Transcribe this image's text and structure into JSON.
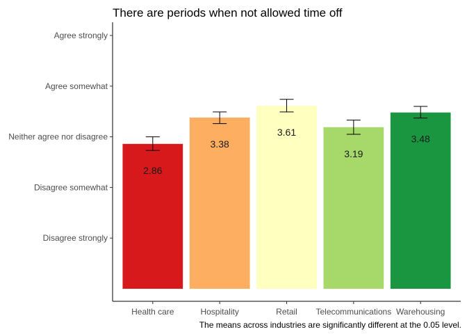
{
  "chart_data": {
    "type": "bar",
    "title": "There are periods when not allowed time off",
    "xlabel": "",
    "ylabel": "",
    "caption": "The means across industries are significantly different at the 0.05 level.",
    "categories": [
      "Health care",
      "Hospitality",
      "Retail",
      "Telecommunications",
      "Warehousing"
    ],
    "values": [
      2.86,
      3.38,
      3.61,
      3.19,
      3.48
    ],
    "value_labels": [
      "2.86",
      "3.38",
      "3.61",
      "3.19",
      "3.48"
    ],
    "error_low": [
      2.73,
      3.26,
      3.49,
      3.05,
      3.37
    ],
    "error_high": [
      3.0,
      3.49,
      3.74,
      3.33,
      3.6
    ],
    "colors": [
      "#d7191c",
      "#fdae61",
      "#ffffbf",
      "#a6d96a",
      "#1a9641"
    ],
    "ylim": [
      0,
      5.15
    ],
    "yticks": [
      1,
      2,
      3,
      4,
      5
    ],
    "ytick_labels": [
      "Disagree strongly",
      "Disagree somewhat",
      "Neither agree nor disagree",
      "Agree somewhat",
      "Agree strongly"
    ],
    "grid": false,
    "legend": "none"
  }
}
